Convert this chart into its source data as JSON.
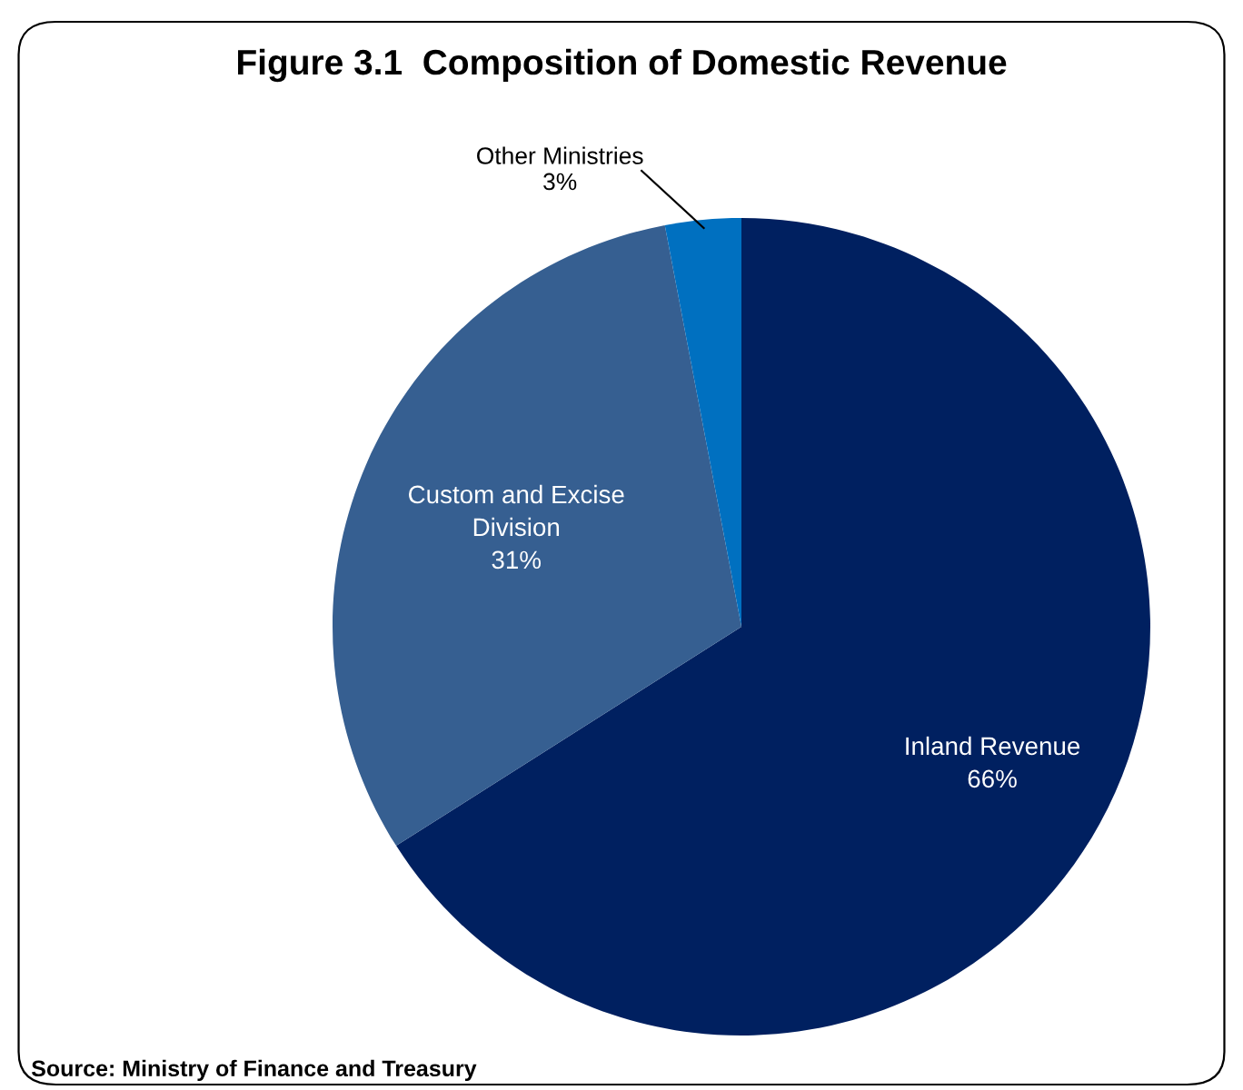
{
  "chart_data": {
    "type": "pie",
    "title": "Figure 3.1  Composition of Domestic Revenue",
    "categories": [
      "Inland Revenue",
      "Custom and Excise\nDivision",
      "Other Ministries"
    ],
    "values": [
      66,
      31,
      3
    ],
    "value_labels": [
      "66%",
      "31%",
      "3%"
    ],
    "colors": [
      "#002060",
      "#365f91",
      "#0070c0"
    ],
    "annotations": [
      "Source: Ministry of Finance and Treasury"
    ]
  }
}
